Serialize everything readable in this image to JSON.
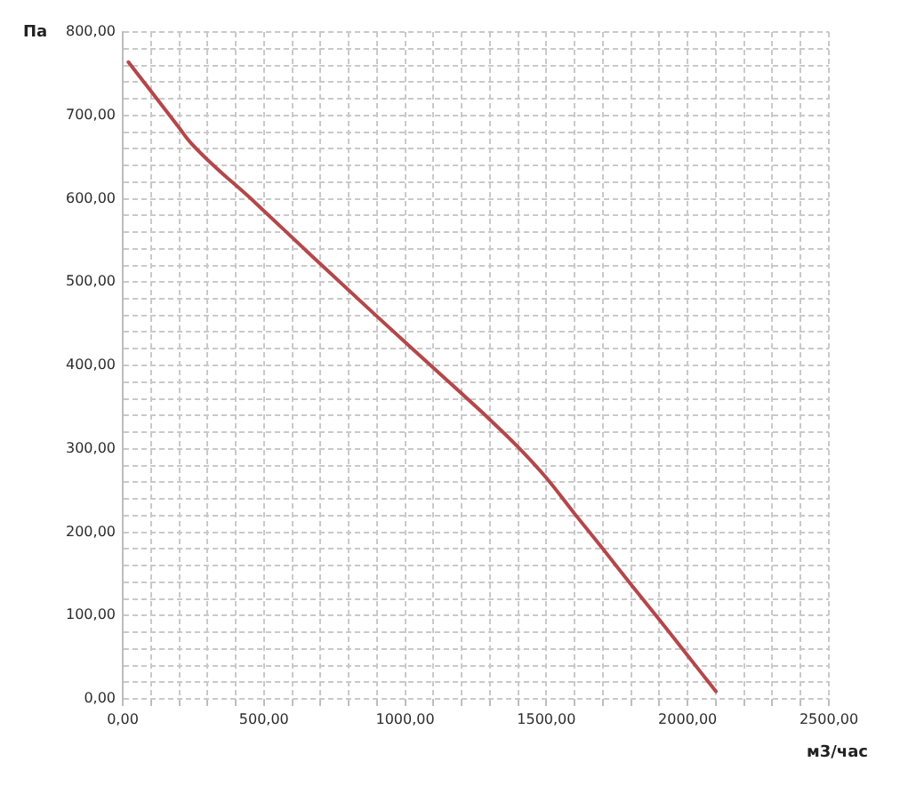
{
  "chart_data": {
    "type": "line",
    "xlabel": "м3/час",
    "ylabel": "Па",
    "xlim": [
      0,
      2500
    ],
    "ylim": [
      0,
      800
    ],
    "xticks": [
      {
        "value": 0,
        "label": "0,00"
      },
      {
        "value": 100,
        "label": null
      },
      {
        "value": 200,
        "label": null
      },
      {
        "value": 300,
        "label": null
      },
      {
        "value": 400,
        "label": null
      },
      {
        "value": 500,
        "label": "500,00"
      },
      {
        "value": 600,
        "label": null
      },
      {
        "value": 700,
        "label": null
      },
      {
        "value": 800,
        "label": null
      },
      {
        "value": 900,
        "label": null
      },
      {
        "value": 1000,
        "label": "1000,00"
      },
      {
        "value": 1100,
        "label": null
      },
      {
        "value": 1200,
        "label": null
      },
      {
        "value": 1300,
        "label": null
      },
      {
        "value": 1400,
        "label": null
      },
      {
        "value": 1500,
        "label": "1500,00"
      },
      {
        "value": 1600,
        "label": null
      },
      {
        "value": 1700,
        "label": null
      },
      {
        "value": 1800,
        "label": null
      },
      {
        "value": 1900,
        "label": null
      },
      {
        "value": 2000,
        "label": "2000,00"
      },
      {
        "value": 2100,
        "label": null
      },
      {
        "value": 2200,
        "label": null
      },
      {
        "value": 2300,
        "label": null
      },
      {
        "value": 2400,
        "label": null
      },
      {
        "value": 2500,
        "label": "2500,00"
      }
    ],
    "yticks": [
      {
        "value": 0,
        "label": "0,00"
      },
      {
        "value": 20,
        "label": null
      },
      {
        "value": 40,
        "label": null
      },
      {
        "value": 60,
        "label": null
      },
      {
        "value": 80,
        "label": null
      },
      {
        "value": 100,
        "label": "100,00"
      },
      {
        "value": 120,
        "label": null
      },
      {
        "value": 140,
        "label": null
      },
      {
        "value": 160,
        "label": null
      },
      {
        "value": 180,
        "label": null
      },
      {
        "value": 200,
        "label": "200,00"
      },
      {
        "value": 220,
        "label": null
      },
      {
        "value": 240,
        "label": null
      },
      {
        "value": 260,
        "label": null
      },
      {
        "value": 280,
        "label": null
      },
      {
        "value": 300,
        "label": "300,00"
      },
      {
        "value": 320,
        "label": null
      },
      {
        "value": 340,
        "label": null
      },
      {
        "value": 360,
        "label": null
      },
      {
        "value": 380,
        "label": null
      },
      {
        "value": 400,
        "label": "400,00"
      },
      {
        "value": 420,
        "label": null
      },
      {
        "value": 440,
        "label": null
      },
      {
        "value": 460,
        "label": null
      },
      {
        "value": 480,
        "label": null
      },
      {
        "value": 500,
        "label": "500,00"
      },
      {
        "value": 520,
        "label": null
      },
      {
        "value": 540,
        "label": null
      },
      {
        "value": 560,
        "label": null
      },
      {
        "value": 580,
        "label": null
      },
      {
        "value": 600,
        "label": "600,00"
      },
      {
        "value": 620,
        "label": null
      },
      {
        "value": 640,
        "label": null
      },
      {
        "value": 660,
        "label": null
      },
      {
        "value": 680,
        "label": null
      },
      {
        "value": 700,
        "label": "700,00"
      },
      {
        "value": 720,
        "label": null
      },
      {
        "value": 740,
        "label": null
      },
      {
        "value": 760,
        "label": null
      },
      {
        "value": 780,
        "label": null
      },
      {
        "value": 800,
        "label": "800,00"
      }
    ],
    "grid": true,
    "marker": "none",
    "line_style": "solid",
    "series": [
      {
        "color": "#b4474a",
        "x": [
          20,
          100,
          200,
          236,
          470,
          680,
          890,
          1100,
          1300,
          1400,
          1500,
          1600,
          1700,
          1800,
          1900,
          2000,
          2100
        ],
        "values": [
          764,
          729,
          685,
          669,
          595,
          528,
          462,
          397,
          335,
          302,
          265,
          222,
          180,
          137,
          95,
          52,
          9
        ]
      }
    ]
  }
}
